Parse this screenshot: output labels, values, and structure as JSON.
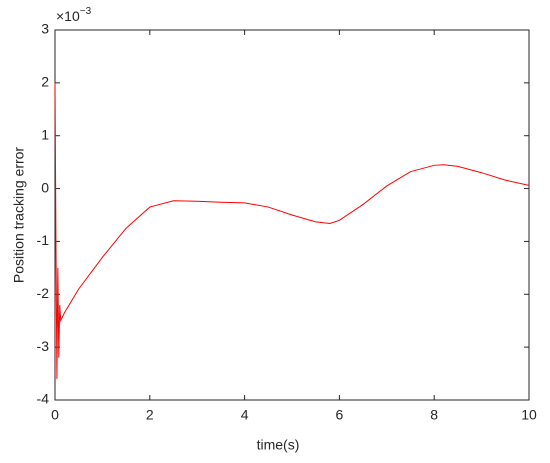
{
  "chart_data": {
    "type": "line",
    "xlabel": "time(s)",
    "ylabel": "Position tracking error",
    "y_multiplier": "×10",
    "y_exponent": "−3",
    "xlim": [
      0,
      10
    ],
    "xticks": [
      0,
      2,
      4,
      6,
      8,
      10
    ],
    "ylim": [
      -4,
      3
    ],
    "yticks": [
      -4,
      -3,
      -2,
      -1,
      0,
      1,
      2,
      3
    ],
    "grid": false,
    "box": true,
    "series": [
      {
        "color": "#ff0000",
        "x": [
          0,
          0.02,
          0.04,
          0.06,
          0.08,
          0.1,
          0.12,
          0.2,
          0.5,
          1,
          1.5,
          2,
          2.5,
          3,
          3.5,
          4,
          4.5,
          5,
          5.5,
          5.8,
          6,
          6.5,
          7,
          7.5,
          8,
          8.2,
          8.5,
          9,
          9.5,
          10
        ],
        "values": [
          2.0,
          -1,
          -3.6,
          -1.5,
          -3.2,
          -2.2,
          -2.5,
          -2.35,
          -1.9,
          -1.3,
          -0.75,
          -0.35,
          -0.23,
          -0.24,
          -0.26,
          -0.27,
          -0.35,
          -0.5,
          -0.63,
          -0.66,
          -0.6,
          -0.3,
          0.05,
          0.32,
          0.44,
          0.45,
          0.42,
          0.3,
          0.16,
          0.06
        ]
      }
    ]
  }
}
